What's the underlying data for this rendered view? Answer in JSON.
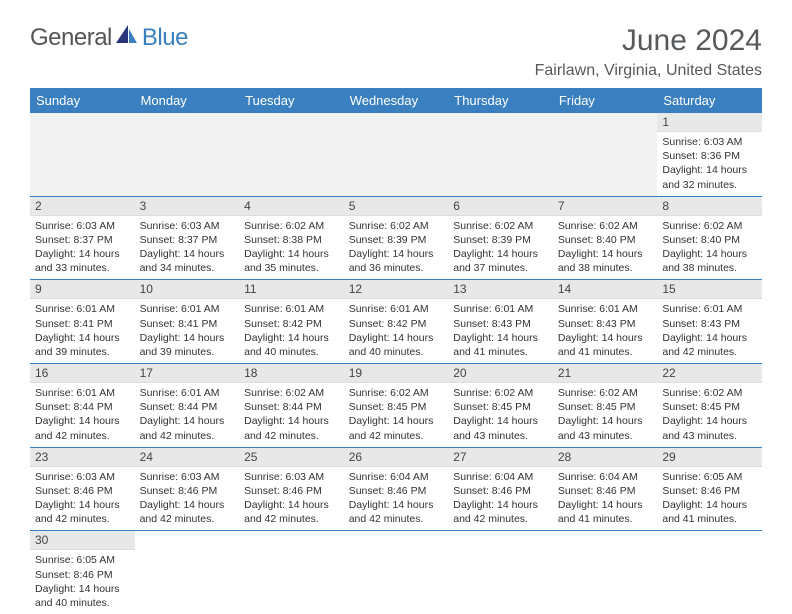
{
  "brand": {
    "part1": "General",
    "part2": "Blue"
  },
  "title": "June 2024",
  "location": "Fairlawn, Virginia, United States",
  "colors": {
    "header_bg": "#3a7fbf",
    "header_text": "#ffffff",
    "daynum_bg": "#e8e8e8",
    "row_border": "#3a7fbf",
    "title_color": "#565a5c"
  },
  "weekdays": [
    "Sunday",
    "Monday",
    "Tuesday",
    "Wednesday",
    "Thursday",
    "Friday",
    "Saturday"
  ],
  "weeks": [
    [
      null,
      null,
      null,
      null,
      null,
      null,
      {
        "n": "1",
        "sr": "6:03 AM",
        "ss": "8:36 PM",
        "dl": "14 hours and 32 minutes."
      }
    ],
    [
      {
        "n": "2",
        "sr": "6:03 AM",
        "ss": "8:37 PM",
        "dl": "14 hours and 33 minutes."
      },
      {
        "n": "3",
        "sr": "6:03 AM",
        "ss": "8:37 PM",
        "dl": "14 hours and 34 minutes."
      },
      {
        "n": "4",
        "sr": "6:02 AM",
        "ss": "8:38 PM",
        "dl": "14 hours and 35 minutes."
      },
      {
        "n": "5",
        "sr": "6:02 AM",
        "ss": "8:39 PM",
        "dl": "14 hours and 36 minutes."
      },
      {
        "n": "6",
        "sr": "6:02 AM",
        "ss": "8:39 PM",
        "dl": "14 hours and 37 minutes."
      },
      {
        "n": "7",
        "sr": "6:02 AM",
        "ss": "8:40 PM",
        "dl": "14 hours and 38 minutes."
      },
      {
        "n": "8",
        "sr": "6:02 AM",
        "ss": "8:40 PM",
        "dl": "14 hours and 38 minutes."
      }
    ],
    [
      {
        "n": "9",
        "sr": "6:01 AM",
        "ss": "8:41 PM",
        "dl": "14 hours and 39 minutes."
      },
      {
        "n": "10",
        "sr": "6:01 AM",
        "ss": "8:41 PM",
        "dl": "14 hours and 39 minutes."
      },
      {
        "n": "11",
        "sr": "6:01 AM",
        "ss": "8:42 PM",
        "dl": "14 hours and 40 minutes."
      },
      {
        "n": "12",
        "sr": "6:01 AM",
        "ss": "8:42 PM",
        "dl": "14 hours and 40 minutes."
      },
      {
        "n": "13",
        "sr": "6:01 AM",
        "ss": "8:43 PM",
        "dl": "14 hours and 41 minutes."
      },
      {
        "n": "14",
        "sr": "6:01 AM",
        "ss": "8:43 PM",
        "dl": "14 hours and 41 minutes."
      },
      {
        "n": "15",
        "sr": "6:01 AM",
        "ss": "8:43 PM",
        "dl": "14 hours and 42 minutes."
      }
    ],
    [
      {
        "n": "16",
        "sr": "6:01 AM",
        "ss": "8:44 PM",
        "dl": "14 hours and 42 minutes."
      },
      {
        "n": "17",
        "sr": "6:01 AM",
        "ss": "8:44 PM",
        "dl": "14 hours and 42 minutes."
      },
      {
        "n": "18",
        "sr": "6:02 AM",
        "ss": "8:44 PM",
        "dl": "14 hours and 42 minutes."
      },
      {
        "n": "19",
        "sr": "6:02 AM",
        "ss": "8:45 PM",
        "dl": "14 hours and 42 minutes."
      },
      {
        "n": "20",
        "sr": "6:02 AM",
        "ss": "8:45 PM",
        "dl": "14 hours and 43 minutes."
      },
      {
        "n": "21",
        "sr": "6:02 AM",
        "ss": "8:45 PM",
        "dl": "14 hours and 43 minutes."
      },
      {
        "n": "22",
        "sr": "6:02 AM",
        "ss": "8:45 PM",
        "dl": "14 hours and 43 minutes."
      }
    ],
    [
      {
        "n": "23",
        "sr": "6:03 AM",
        "ss": "8:46 PM",
        "dl": "14 hours and 42 minutes."
      },
      {
        "n": "24",
        "sr": "6:03 AM",
        "ss": "8:46 PM",
        "dl": "14 hours and 42 minutes."
      },
      {
        "n": "25",
        "sr": "6:03 AM",
        "ss": "8:46 PM",
        "dl": "14 hours and 42 minutes."
      },
      {
        "n": "26",
        "sr": "6:04 AM",
        "ss": "8:46 PM",
        "dl": "14 hours and 42 minutes."
      },
      {
        "n": "27",
        "sr": "6:04 AM",
        "ss": "8:46 PM",
        "dl": "14 hours and 42 minutes."
      },
      {
        "n": "28",
        "sr": "6:04 AM",
        "ss": "8:46 PM",
        "dl": "14 hours and 41 minutes."
      },
      {
        "n": "29",
        "sr": "6:05 AM",
        "ss": "8:46 PM",
        "dl": "14 hours and 41 minutes."
      }
    ],
    [
      {
        "n": "30",
        "sr": "6:05 AM",
        "ss": "8:46 PM",
        "dl": "14 hours and 40 minutes."
      },
      null,
      null,
      null,
      null,
      null,
      null
    ]
  ],
  "labels": {
    "sunrise": "Sunrise:",
    "sunset": "Sunset:",
    "daylight": "Daylight:"
  }
}
